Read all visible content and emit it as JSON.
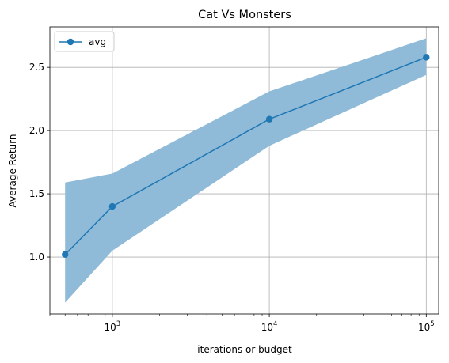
{
  "chart_data": {
    "type": "line",
    "title": "Cat Vs Monsters",
    "xlabel": "iterations or budget",
    "ylabel": "Average Return",
    "xscale": "log",
    "xlim": [
      400,
      120000
    ],
    "ylim": [
      0.55,
      2.82
    ],
    "x": [
      500,
      1000,
      10000,
      100000
    ],
    "x_ticks": [
      {
        "value": 1000,
        "base": "10",
        "exp": "3"
      },
      {
        "value": 10000,
        "base": "10",
        "exp": "4"
      },
      {
        "value": 100000,
        "base": "10",
        "exp": "5"
      }
    ],
    "y_ticks": [
      1.0,
      1.5,
      2.0,
      2.5
    ],
    "y_tick_labels": [
      "1.0",
      "1.5",
      "2.0",
      "2.5"
    ],
    "series": [
      {
        "name": "avg",
        "color": "#1f77b4",
        "marker": "circle",
        "values": [
          1.02,
          1.4,
          2.09,
          2.58
        ],
        "band_lower": [
          0.64,
          1.05,
          1.88,
          2.44
        ],
        "band_upper": [
          1.59,
          1.66,
          2.31,
          2.73
        ],
        "band_color": "#8fbbd9"
      }
    ],
    "grid": true,
    "legend_position": "top-left"
  }
}
